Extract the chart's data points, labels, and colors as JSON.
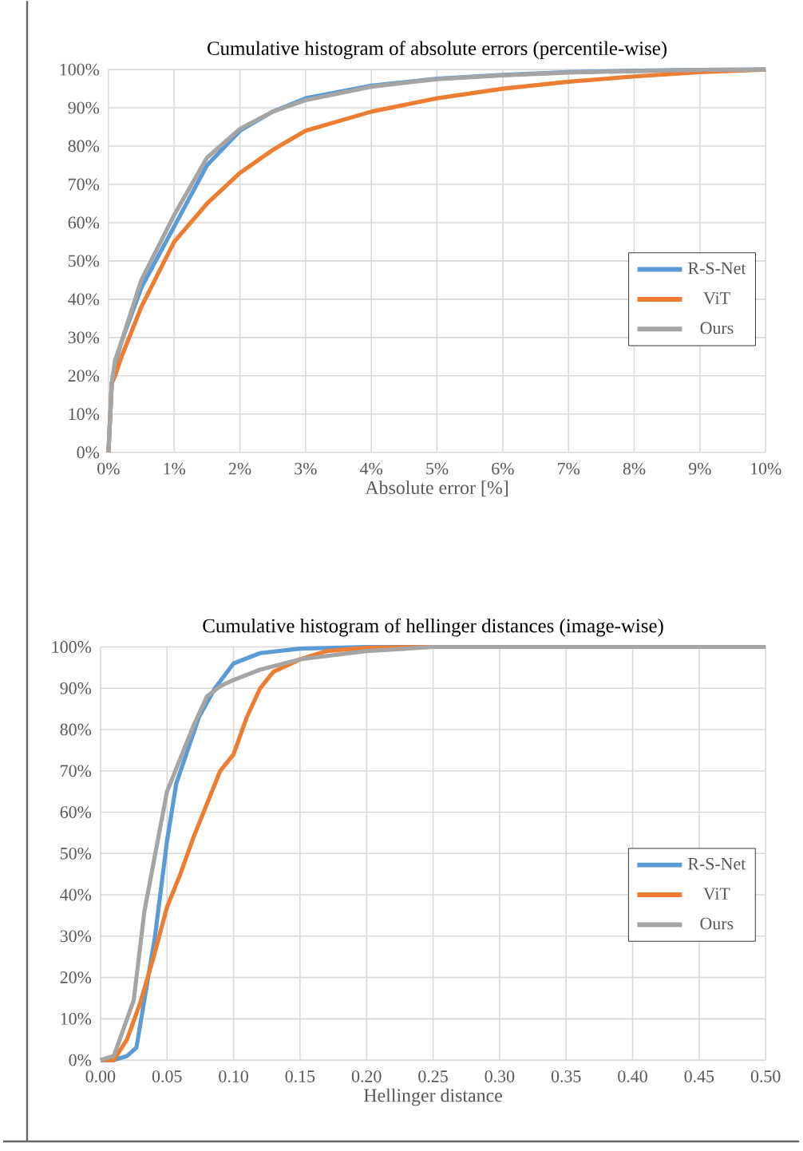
{
  "chart_data": [
    {
      "type": "line",
      "title": "Cumulative histogram of absolute errors (percentile-wise)",
      "xlabel": "Absolute error [%]",
      "xlim": [
        0,
        10
      ],
      "ylim": [
        0,
        100
      ],
      "xticks": [
        {
          "value": 0,
          "label": "0%"
        },
        {
          "value": 1,
          "label": "1%"
        },
        {
          "value": 2,
          "label": "2%"
        },
        {
          "value": 3,
          "label": "3%"
        },
        {
          "value": 4,
          "label": "4%"
        },
        {
          "value": 5,
          "label": "5%"
        },
        {
          "value": 6,
          "label": "6%"
        },
        {
          "value": 7,
          "label": "7%"
        },
        {
          "value": 8,
          "label": "8%"
        },
        {
          "value": 9,
          "label": "9%"
        },
        {
          "value": 10,
          "label": "10%"
        }
      ],
      "yticks": [
        {
          "value": 0,
          "label": "0%"
        },
        {
          "value": 10,
          "label": "10%"
        },
        {
          "value": 20,
          "label": "20%"
        },
        {
          "value": 30,
          "label": "30%"
        },
        {
          "value": 40,
          "label": "40%"
        },
        {
          "value": 50,
          "label": "50%"
        },
        {
          "value": 60,
          "label": "60%"
        },
        {
          "value": 70,
          "label": "70%"
        },
        {
          "value": 80,
          "label": "80%"
        },
        {
          "value": 90,
          "label": "90%"
        },
        {
          "value": 100,
          "label": "100%"
        }
      ],
      "grid": true,
      "legend": "right",
      "marker": "none",
      "line_style": "solid",
      "series": [
        {
          "name": "R-S-Net",
          "color": "#5b9bd5",
          "x": [
            0,
            0.05,
            0.1,
            0.2,
            0.5,
            1,
            1.5,
            2,
            2.5,
            3,
            4,
            5,
            6,
            7,
            8,
            9,
            10
          ],
          "values": [
            0,
            18,
            23,
            29,
            43,
            59,
            75,
            84,
            89,
            92.5,
            95.8,
            97.6,
            98.6,
            99.3,
            99.7,
            99.9,
            100
          ]
        },
        {
          "name": "ViT",
          "color": "#ed7d31",
          "x": [
            0,
            0.05,
            0.1,
            0.2,
            0.5,
            1,
            1.5,
            2,
            2.5,
            3,
            4,
            5,
            6,
            7,
            8,
            9,
            10
          ],
          "values": [
            0,
            18,
            20,
            25,
            38,
            55,
            65,
            73,
            79,
            84,
            89,
            92.5,
            95,
            96.8,
            98.2,
            99.3,
            100
          ]
        },
        {
          "name": "Ours",
          "color": "#a5a5a5",
          "x": [
            0,
            0.05,
            0.1,
            0.2,
            0.5,
            1,
            1.5,
            2,
            2.5,
            3,
            4,
            5,
            6,
            7,
            8,
            9,
            10
          ],
          "values": [
            0,
            18,
            24,
            29,
            45,
            62,
            77,
            84.5,
            89,
            92,
            95.5,
            97.5,
            98.5,
            99.2,
            99.6,
            99.9,
            100
          ]
        }
      ]
    },
    {
      "type": "line",
      "title": "Cumulative histogram of hellinger distances (image-wise)",
      "xlabel": "Hellinger distance",
      "xlim": [
        0,
        0.5
      ],
      "ylim": [
        0,
        100
      ],
      "xticks": [
        {
          "value": 0,
          "label": "0.00"
        },
        {
          "value": 0.05,
          "label": "0.05"
        },
        {
          "value": 0.1,
          "label": "0.10"
        },
        {
          "value": 0.15,
          "label": "0.15"
        },
        {
          "value": 0.2,
          "label": "0.20"
        },
        {
          "value": 0.25,
          "label": "0.25"
        },
        {
          "value": 0.3,
          "label": "0.30"
        },
        {
          "value": 0.35,
          "label": "0.35"
        },
        {
          "value": 0.4,
          "label": "0.40"
        },
        {
          "value": 0.45,
          "label": "0.45"
        },
        {
          "value": 0.5,
          "label": "0.50"
        }
      ],
      "yticks": [
        {
          "value": 0,
          "label": "0%"
        },
        {
          "value": 10,
          "label": "10%"
        },
        {
          "value": 20,
          "label": "20%"
        },
        {
          "value": 30,
          "label": "30%"
        },
        {
          "value": 40,
          "label": "40%"
        },
        {
          "value": 50,
          "label": "50%"
        },
        {
          "value": 60,
          "label": "60%"
        },
        {
          "value": 70,
          "label": "70%"
        },
        {
          "value": 80,
          "label": "80%"
        },
        {
          "value": 90,
          "label": "90%"
        },
        {
          "value": 100,
          "label": "100%"
        }
      ],
      "grid": true,
      "legend": "right",
      "marker": "none",
      "line_style": "solid",
      "series": [
        {
          "name": "R-S-Net",
          "color": "#5b9bd5",
          "x": [
            0,
            0.01,
            0.02,
            0.027,
            0.041,
            0.05,
            0.057,
            0.074,
            0.086,
            0.1,
            0.12,
            0.15,
            0.2,
            0.25,
            0.5
          ],
          "values": [
            0,
            0,
            1,
            3,
            30,
            53,
            67,
            83,
            90,
            96,
            98.5,
            99.6,
            100,
            100,
            100
          ]
        },
        {
          "name": "ViT",
          "color": "#ed7d31",
          "x": [
            0,
            0.01,
            0.02,
            0.03,
            0.04,
            0.05,
            0.06,
            0.07,
            0.08,
            0.09,
            0.1,
            0.11,
            0.12,
            0.13,
            0.15,
            0.17,
            0.2,
            0.25
          ],
          "values": [
            0,
            0,
            5,
            14,
            25,
            37,
            45,
            54,
            62,
            70,
            74,
            83,
            90,
            94,
            97,
            99,
            99.8,
            100
          ]
        },
        {
          "name": "Ours",
          "color": "#a5a5a5",
          "x": [
            0,
            0.01,
            0.025,
            0.033,
            0.05,
            0.07,
            0.08,
            0.09,
            0.1,
            0.12,
            0.15,
            0.2,
            0.25,
            0.5
          ],
          "values": [
            0,
            1,
            14.5,
            36,
            65,
            81,
            88,
            90.5,
            92,
            94.5,
            97,
            99,
            100,
            100
          ]
        }
      ]
    }
  ]
}
